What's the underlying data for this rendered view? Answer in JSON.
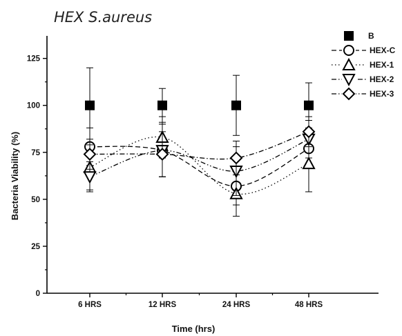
{
  "chart_data": {
    "type": "line",
    "title": "HEX   S.aureus",
    "xlabel": "Time (hrs)",
    "ylabel": "Bacteria Viability (%)",
    "categories": [
      "6 HRS",
      "12 HRS",
      "24 HRS",
      "48 HRS"
    ],
    "ylim": [
      0,
      137
    ],
    "yticks": [
      0,
      25,
      50,
      75,
      100,
      125
    ],
    "grid": false,
    "legend_position": "top-right",
    "series": [
      {
        "name": "B",
        "marker": "filled-square",
        "line": "none",
        "values": [
          100,
          100,
          100,
          100
        ],
        "error": [
          20,
          9,
          16,
          12
        ]
      },
      {
        "name": "HEX-C",
        "marker": "circle",
        "line": "dashed",
        "values": [
          78,
          76,
          57,
          77
        ],
        "error": [
          10,
          14,
          10,
          10
        ]
      },
      {
        "name": "HEX-1",
        "marker": "triangle-up",
        "line": "dotted",
        "values": [
          67,
          83,
          53,
          69
        ],
        "error": [
          12,
          11,
          12,
          15
        ]
      },
      {
        "name": "HEX-2",
        "marker": "triangle-down",
        "line": "dash-dot-dot",
        "values": [
          62,
          76,
          65,
          82
        ],
        "error": [
          8,
          14,
          13,
          10
        ]
      },
      {
        "name": "HEX-3",
        "marker": "diamond",
        "line": "dash-dot",
        "values": [
          74,
          74,
          72,
          86
        ],
        "error": [
          8,
          12,
          9,
          8
        ]
      }
    ]
  }
}
